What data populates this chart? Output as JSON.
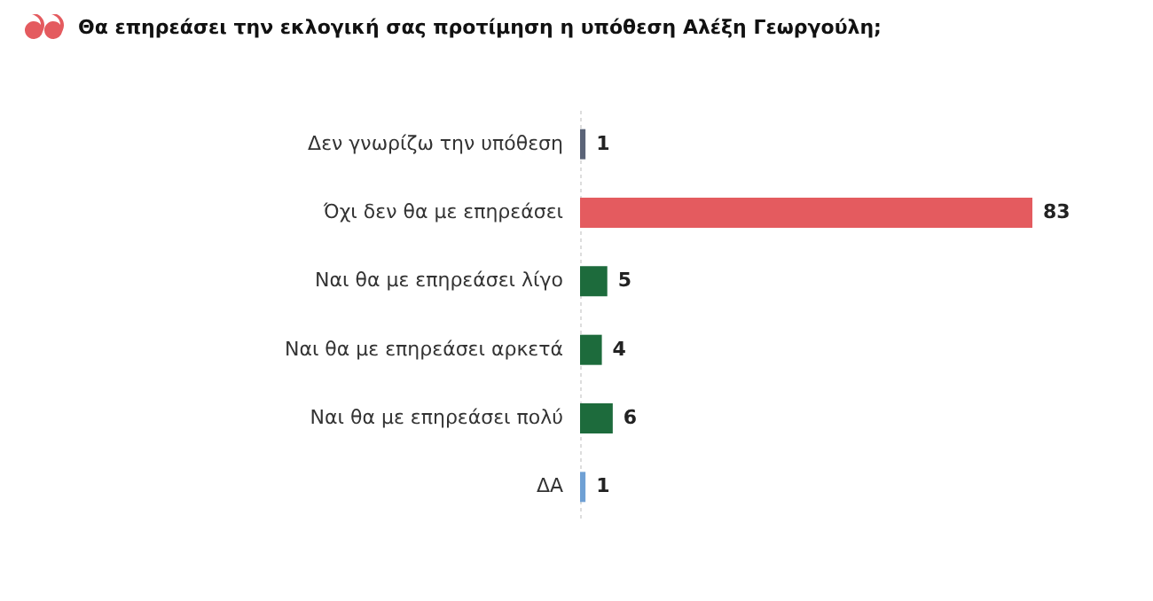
{
  "chart_data": {
    "type": "bar",
    "orientation": "horizontal",
    "title": "Θα επηρεάσει την εκλογική σας προτίμηση η υπόθεση Αλέξη Γεωργούλη;",
    "categories": [
      "Δεν γνωρίζω την υπόθεση",
      "Όχι δεν θα με επηρεάσει",
      "Ναι θα με επηρεάσει λίγο",
      "Ναι θα με επηρεάσει αρκετά",
      "Ναι θα με επηρεάσει πολύ",
      "ΔΑ"
    ],
    "values": [
      1,
      83,
      5,
      4,
      6,
      1
    ],
    "colors": [
      "#5b6478",
      "#e45b5f",
      "#1d6b3c",
      "#1d6b3c",
      "#1d6b3c",
      "#6fa0d4"
    ],
    "data_labels": true
  }
}
